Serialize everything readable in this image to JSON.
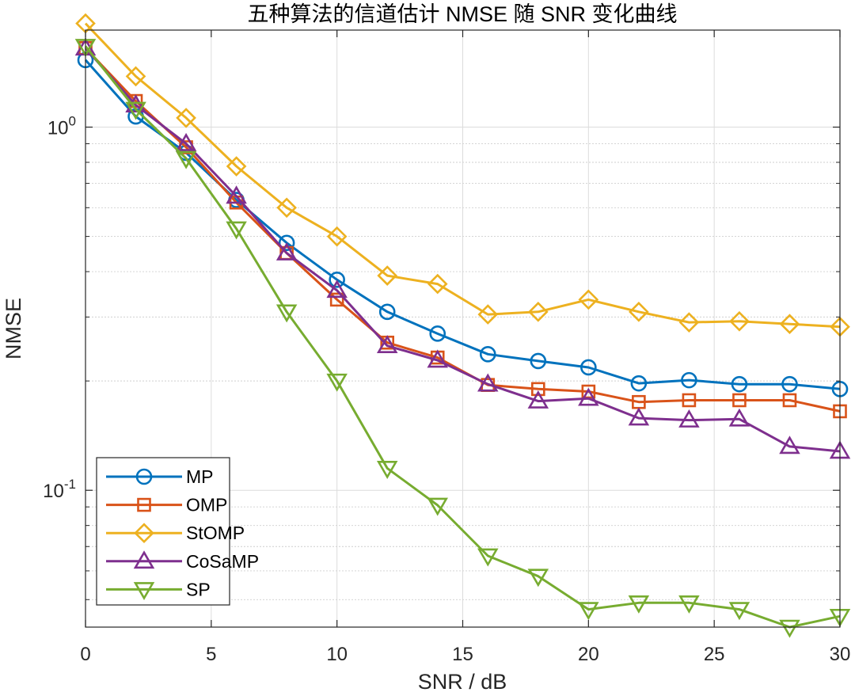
{
  "chart_data": {
    "type": "line",
    "title": "五种算法的信道估计 NMSE 随 SNR 变化曲线",
    "xlabel": "SNR / dB",
    "ylabel": "NMSE",
    "xlim": [
      0,
      30
    ],
    "ylim": [
      0.042,
      1.85
    ],
    "yscale": "log",
    "grid": true,
    "legend_position": "bottom-left",
    "x_ticks": [
      0,
      5,
      10,
      15,
      20,
      25,
      30
    ],
    "x_tick_labels": [
      "0",
      "5",
      "10",
      "15",
      "20",
      "25",
      "30"
    ],
    "y_ticks": [
      {
        "value": 1.0,
        "base": "10",
        "exp": "0"
      },
      {
        "value": 0.1,
        "base": "10",
        "exp": "-1"
      }
    ],
    "x": [
      0,
      2,
      4,
      6,
      8,
      10,
      12,
      14,
      16,
      18,
      20,
      22,
      24,
      26,
      28,
      30
    ],
    "series": [
      {
        "name": "MP",
        "color": "#0072BD",
        "marker": "circle",
        "values": [
          1.53,
          1.07,
          0.85,
          0.63,
          0.48,
          0.38,
          0.31,
          0.27,
          0.237,
          0.227,
          0.218,
          0.197,
          0.201,
          0.196,
          0.196,
          0.19
        ]
      },
      {
        "name": "OMP",
        "color": "#D95319",
        "marker": "square",
        "values": [
          1.65,
          1.18,
          0.88,
          0.62,
          0.45,
          0.335,
          0.255,
          0.232,
          0.195,
          0.19,
          0.187,
          0.175,
          0.177,
          0.177,
          0.177,
          0.165
        ]
      },
      {
        "name": "StOMP",
        "color": "#EDB120",
        "marker": "diamond",
        "values": [
          1.93,
          1.38,
          1.06,
          0.78,
          0.6,
          0.5,
          0.39,
          0.37,
          0.305,
          0.31,
          0.335,
          0.31,
          0.29,
          0.292,
          0.287,
          0.282
        ]
      },
      {
        "name": "CoSaMP",
        "color": "#7E2F8E",
        "marker": "triangle-up",
        "values": [
          1.65,
          1.15,
          0.9,
          0.645,
          0.45,
          0.355,
          0.25,
          0.228,
          0.196,
          0.176,
          0.179,
          0.158,
          0.156,
          0.157,
          0.132,
          0.128
        ]
      },
      {
        "name": "SP",
        "color": "#77AC30",
        "marker": "triangle-down",
        "values": [
          1.67,
          1.12,
          0.82,
          0.525,
          0.31,
          0.2,
          0.115,
          0.091,
          0.066,
          0.058,
          0.047,
          0.049,
          0.049,
          0.047,
          0.042,
          0.045
        ]
      }
    ]
  }
}
